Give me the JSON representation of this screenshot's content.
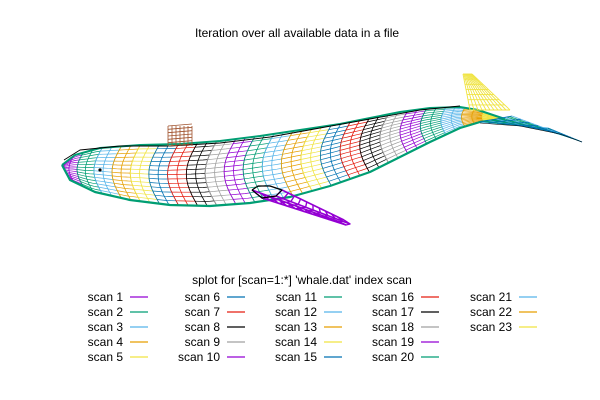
{
  "chart_data": {
    "type": "3d-surface",
    "title": "Iteration over all available data in a file",
    "legend_title": "splot for [scan=1:*] 'whale.dat' index scan",
    "legend_placement": "bottom",
    "legend_layout": {
      "columns": 5,
      "rows": 5
    },
    "grid": false,
    "series": [
      {
        "name": "scan 1",
        "color": "#9400d3"
      },
      {
        "name": "scan 2",
        "color": "#009e73"
      },
      {
        "name": "scan 3",
        "color": "#56b4e9"
      },
      {
        "name": "scan 4",
        "color": "#e69f00"
      },
      {
        "name": "scan 5",
        "color": "#f0e442"
      },
      {
        "name": "scan 6",
        "color": "#0072b2"
      },
      {
        "name": "scan 7",
        "color": "#e51e10"
      },
      {
        "name": "scan 8",
        "color": "#000000"
      },
      {
        "name": "scan 9",
        "color": "#a0a0a0"
      },
      {
        "name": "scan 10",
        "color": "#9400d3"
      },
      {
        "name": "scan 11",
        "color": "#009e73"
      },
      {
        "name": "scan 12",
        "color": "#56b4e9"
      },
      {
        "name": "scan 13",
        "color": "#e69f00"
      },
      {
        "name": "scan 14",
        "color": "#f0e442"
      },
      {
        "name": "scan 15",
        "color": "#0072b2"
      },
      {
        "name": "scan 16",
        "color": "#e51e10"
      },
      {
        "name": "scan 17",
        "color": "#000000"
      },
      {
        "name": "scan 18",
        "color": "#a0a0a0"
      },
      {
        "name": "scan 19",
        "color": "#9400d3"
      },
      {
        "name": "scan 20",
        "color": "#009e73"
      },
      {
        "name": "scan 21",
        "color": "#56b4e9"
      },
      {
        "name": "scan 22",
        "color": "#e69f00"
      },
      {
        "name": "scan 23",
        "color": "#f0e442"
      }
    ]
  }
}
